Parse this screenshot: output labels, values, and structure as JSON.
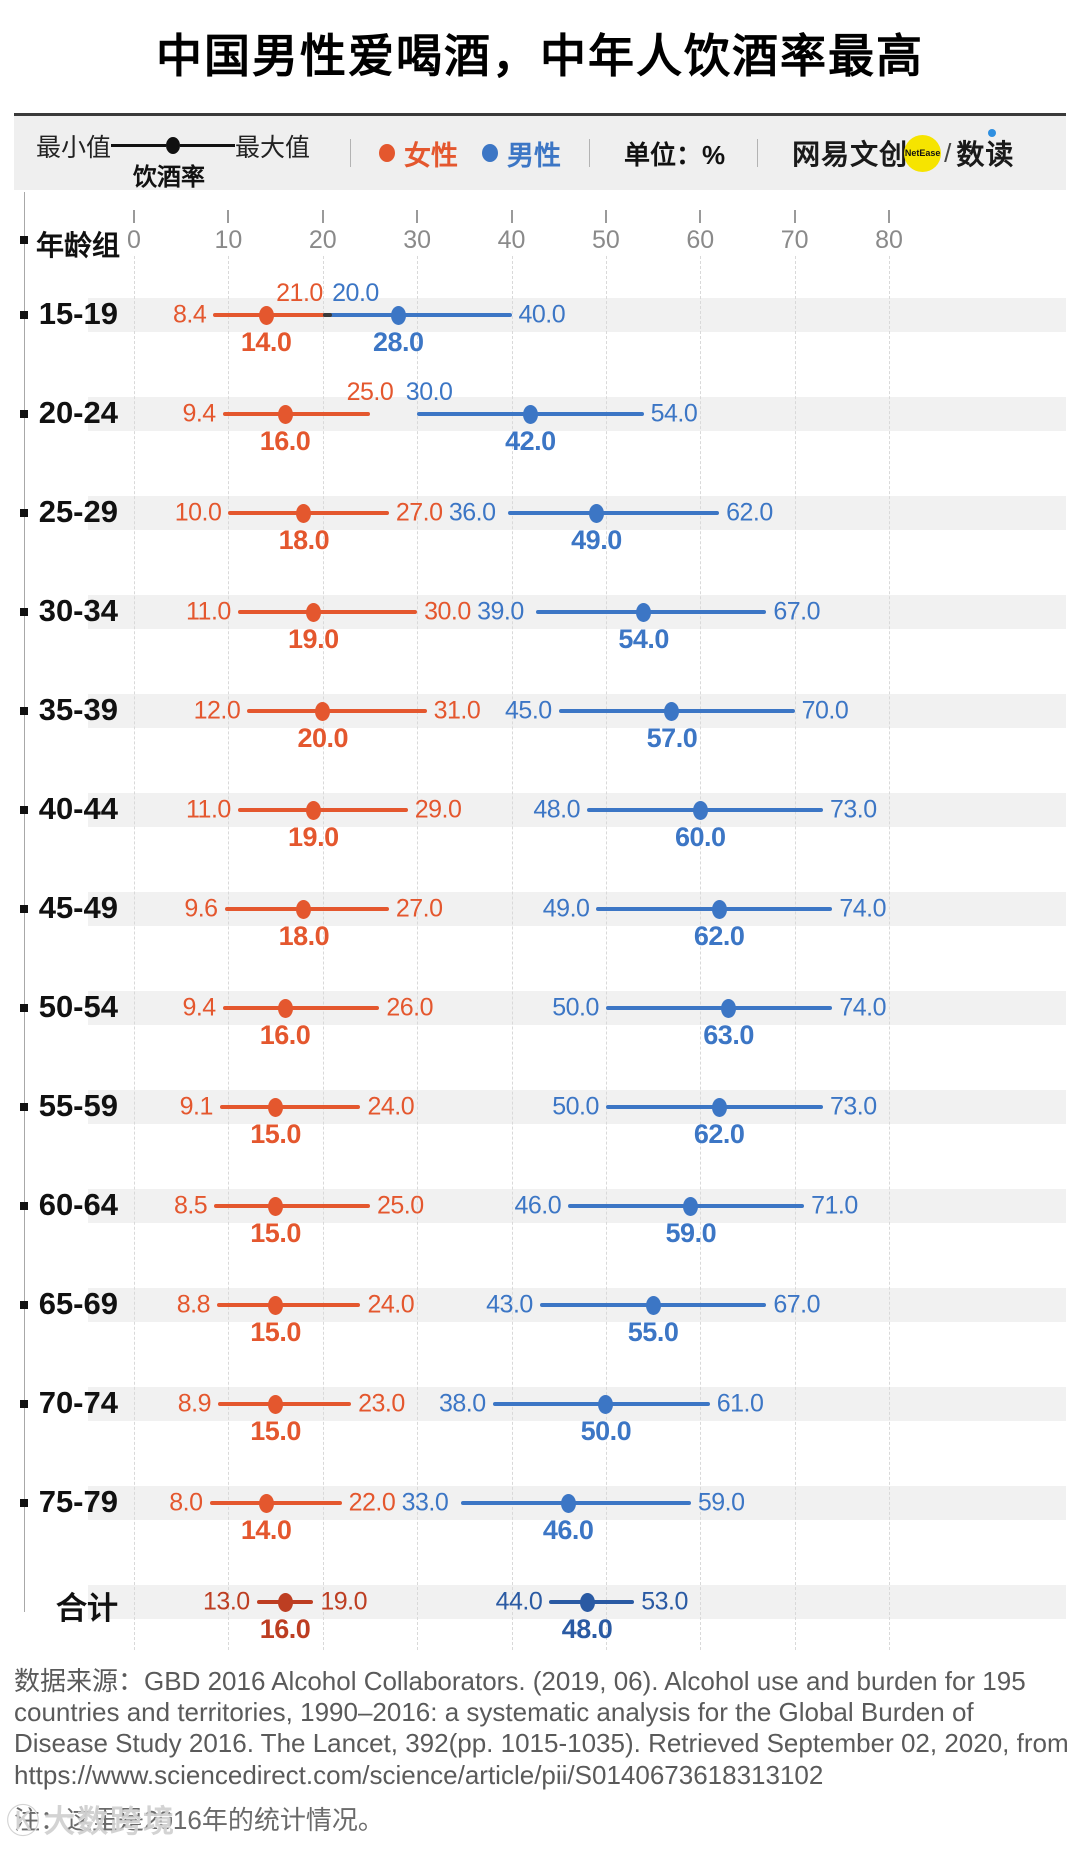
{
  "title": "中国男性爱喝酒，中年人饮酒率最高",
  "legend": {
    "min_label": "最小值",
    "max_label": "最大值",
    "metric_label": "饮酒率",
    "unit_label": "单位：%",
    "brand_left": "网易文创",
    "brand_badge": "NetEase",
    "brand_sep": "/",
    "brand_right": "数读"
  },
  "axis": {
    "group_label": "年龄组"
  },
  "colors": {
    "female": "#E4572E",
    "male": "#3C76C5",
    "female_total": "#BD3E22",
    "male_total": "#2A5AA3",
    "overlap": "#3A3A3A",
    "stripe": "#F1F1F1",
    "grid": "#D9D9D9",
    "axis_text": "#8A8A8A",
    "badge_yellow": "#F6E400",
    "accent_blue": "#2F8FE0"
  },
  "chart_data": {
    "type": "dumbbell-range",
    "title": "中国男性爱喝酒，中年人饮酒率最高",
    "unit": "%",
    "xlim": [
      0,
      80
    ],
    "x_ticks": [
      0,
      10,
      20,
      30,
      40,
      50,
      60,
      70,
      80
    ],
    "grid": "dashed-vertical",
    "categories": [
      "15-19",
      "20-24",
      "25-29",
      "30-34",
      "35-39",
      "40-44",
      "45-49",
      "50-54",
      "55-59",
      "60-64",
      "65-69",
      "70-74",
      "75-79",
      "合计"
    ],
    "series": [
      {
        "name": "女性",
        "min": [
          8.4,
          9.4,
          10.0,
          11.0,
          12.0,
          11.0,
          9.6,
          9.4,
          9.1,
          8.5,
          8.8,
          8.9,
          8.0,
          13.0
        ],
        "mid": [
          14.0,
          16.0,
          18.0,
          19.0,
          20.0,
          19.0,
          18.0,
          16.0,
          15.0,
          15.0,
          15.0,
          15.0,
          14.0,
          16.0
        ],
        "max": [
          21.0,
          25.0,
          27.0,
          30.0,
          31.0,
          29.0,
          27.0,
          26.0,
          24.0,
          25.0,
          24.0,
          23.0,
          22.0,
          19.0
        ]
      },
      {
        "name": "男性",
        "min": [
          20.0,
          30.0,
          36.0,
          39.0,
          45.0,
          48.0,
          49.0,
          50.0,
          50.0,
          46.0,
          43.0,
          38.0,
          33.0,
          44.0
        ],
        "mid": [
          28.0,
          42.0,
          49.0,
          54.0,
          57.0,
          60.0,
          62.0,
          63.0,
          62.0,
          59.0,
          55.0,
          50.0,
          46.0,
          48.0
        ],
        "max": [
          40.0,
          54.0,
          62.0,
          67.0,
          70.0,
          73.0,
          74.0,
          74.0,
          73.0,
          71.0,
          67.0,
          61.0,
          59.0,
          53.0
        ]
      }
    ]
  },
  "footer": {
    "source": "数据来源：GBD 2016 Alcohol Collaborators. (2019, 06). Alcohol use and burden for 195 countries and territories, 1990–2016: a systematic analysis for the Global Burden of Disease Study 2016. The Lancet, 392(pp. 1015-1035).  Retrieved September 02, 2020, from https://www.sciencedirect.com/science/article/pii/S0140673618313102",
    "note": "注：这里是2016年的统计情况。",
    "watermark_icon": "Ⓚ",
    "watermark": "大数跨境"
  }
}
